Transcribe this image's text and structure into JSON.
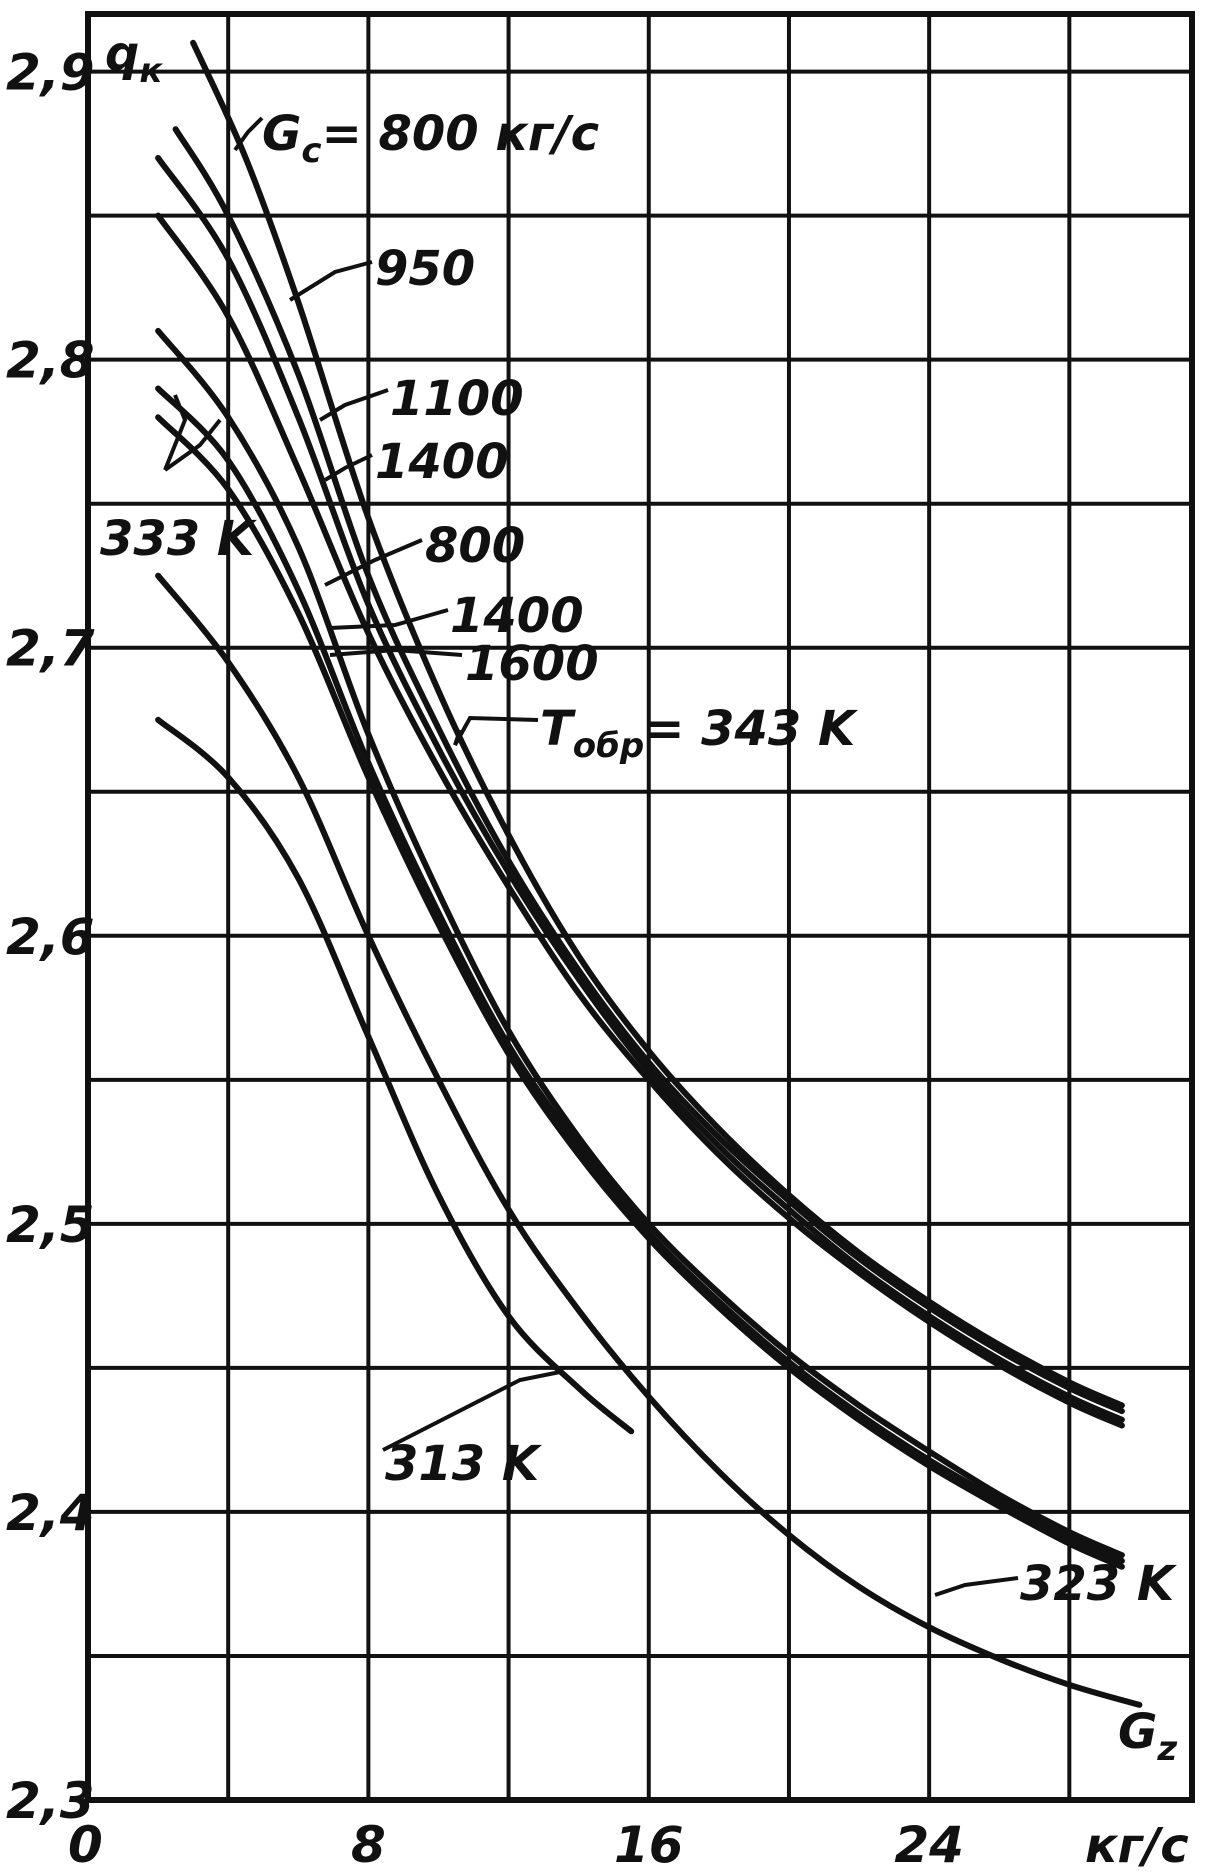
{
  "chart_data": {
    "type": "line",
    "title": "",
    "xlabel": "G",
    "xlabel_sub": "z",
    "xunit": "кг/с",
    "ylabel": "q",
    "ylabel_sub": "к",
    "xlim": [
      0,
      31.5
    ],
    "ylim": [
      2.3,
      2.92
    ],
    "grid": true,
    "x_grid_step": 4,
    "y_grid_step": 0.05,
    "x_tick_labels": [
      {
        "value": 0,
        "label": "0"
      },
      {
        "value": 8,
        "label": "8"
      },
      {
        "value": 16,
        "label": "16"
      },
      {
        "value": 24,
        "label": "24"
      }
    ],
    "y_tick_labels": [
      {
        "value": 2.3,
        "label": "2,3"
      },
      {
        "value": 2.4,
        "label": "2,4"
      },
      {
        "value": 2.5,
        "label": "2,5"
      },
      {
        "value": 2.6,
        "label": "2,6"
      },
      {
        "value": 2.7,
        "label": "2,7"
      },
      {
        "value": 2.8,
        "label": "2,8"
      },
      {
        "value": 2.9,
        "label": "2,9"
      }
    ],
    "series": [
      {
        "name": "G_c = 800 кг/с, T_обр = 343 K",
        "x": [
          3.0,
          4.5,
          6,
          8,
          10,
          12,
          14,
          16,
          18,
          20,
          22,
          24,
          26,
          28,
          29.5
        ],
        "y": [
          2.91,
          2.87,
          2.82,
          2.745,
          2.685,
          2.635,
          2.593,
          2.56,
          2.533,
          2.51,
          2.49,
          2.473,
          2.458,
          2.445,
          2.437
        ]
      },
      {
        "name": "950",
        "x": [
          2.5,
          4,
          6,
          8,
          10,
          12,
          14,
          16,
          18,
          20,
          22,
          24,
          26,
          28,
          29.5
        ],
        "y": [
          2.88,
          2.85,
          2.795,
          2.725,
          2.672,
          2.626,
          2.588,
          2.556,
          2.53,
          2.508,
          2.488,
          2.471,
          2.456,
          2.443,
          2.435
        ]
      },
      {
        "name": "1100",
        "x": [
          2.0,
          4,
          6,
          8,
          10,
          12,
          14,
          16,
          18,
          20,
          22,
          24,
          26,
          28,
          29.5
        ],
        "y": [
          2.87,
          2.835,
          2.78,
          2.715,
          2.665,
          2.622,
          2.585,
          2.553,
          2.527,
          2.505,
          2.485,
          2.468,
          2.453,
          2.44,
          2.432
        ]
      },
      {
        "name": "1400",
        "x": [
          2.0,
          4,
          6,
          8,
          10,
          12,
          14,
          16,
          18,
          20,
          22,
          24,
          26,
          28,
          29.5
        ],
        "y": [
          2.85,
          2.815,
          2.762,
          2.705,
          2.658,
          2.617,
          2.58,
          2.55,
          2.524,
          2.502,
          2.483,
          2.466,
          2.451,
          2.438,
          2.43
        ]
      },
      {
        "name": "T_обр = 333 K, 800",
        "x": [
          2.0,
          4,
          6,
          8,
          10,
          12,
          14,
          16,
          18,
          20,
          22,
          24,
          26,
          28,
          29.5
        ],
        "y": [
          2.81,
          2.78,
          2.735,
          2.67,
          2.615,
          2.567,
          2.53,
          2.5,
          2.476,
          2.455,
          2.437,
          2.421,
          2.406,
          2.393,
          2.385
        ]
      },
      {
        "name": "1400",
        "x": [
          2.0,
          4,
          6,
          8,
          10,
          12,
          14,
          16,
          18,
          20,
          22,
          24,
          26,
          28,
          29.5
        ],
        "y": [
          2.79,
          2.765,
          2.72,
          2.66,
          2.608,
          2.562,
          2.527,
          2.497,
          2.473,
          2.452,
          2.434,
          2.418,
          2.404,
          2.391,
          2.383
        ]
      },
      {
        "name": "1600",
        "x": [
          2.0,
          4,
          6,
          8,
          10,
          12,
          14,
          16,
          18,
          20,
          22,
          24,
          26,
          28,
          29.5
        ],
        "y": [
          2.78,
          2.755,
          2.712,
          2.655,
          2.604,
          2.559,
          2.524,
          2.495,
          2.471,
          2.45,
          2.432,
          2.416,
          2.402,
          2.389,
          2.381
        ]
      },
      {
        "name": "323 K",
        "x": [
          2.0,
          4,
          6,
          8,
          10,
          12,
          14,
          16,
          18,
          20,
          22,
          24,
          26,
          28,
          30
        ],
        "y": [
          2.725,
          2.695,
          2.655,
          2.6,
          2.55,
          2.505,
          2.47,
          2.44,
          2.414,
          2.392,
          2.374,
          2.36,
          2.349,
          2.34,
          2.333
        ]
      },
      {
        "name": "313 K",
        "x": [
          2.0,
          4,
          6,
          8,
          10,
          12,
          14,
          15.5
        ],
        "y": [
          2.675,
          2.655,
          2.62,
          2.565,
          2.51,
          2.468,
          2.443,
          2.428
        ]
      }
    ],
    "annotations": [
      {
        "text": "q",
        "sub": "к"
      },
      {
        "text": "G",
        "sub": "c",
        "after": "= 800 кг/с"
      },
      {
        "text": "950"
      },
      {
        "text": "1100"
      },
      {
        "text": "1400"
      },
      {
        "text": "800"
      },
      {
        "text": "1400"
      },
      {
        "text": "1600"
      },
      {
        "text": "T",
        "sub": "обр",
        "after": "= 343 K"
      },
      {
        "text": "333 K"
      },
      {
        "text": "313 K"
      },
      {
        "text": "323 K"
      },
      {
        "text": "G",
        "sub": "z"
      },
      {
        "text": "кг/с"
      }
    ]
  }
}
